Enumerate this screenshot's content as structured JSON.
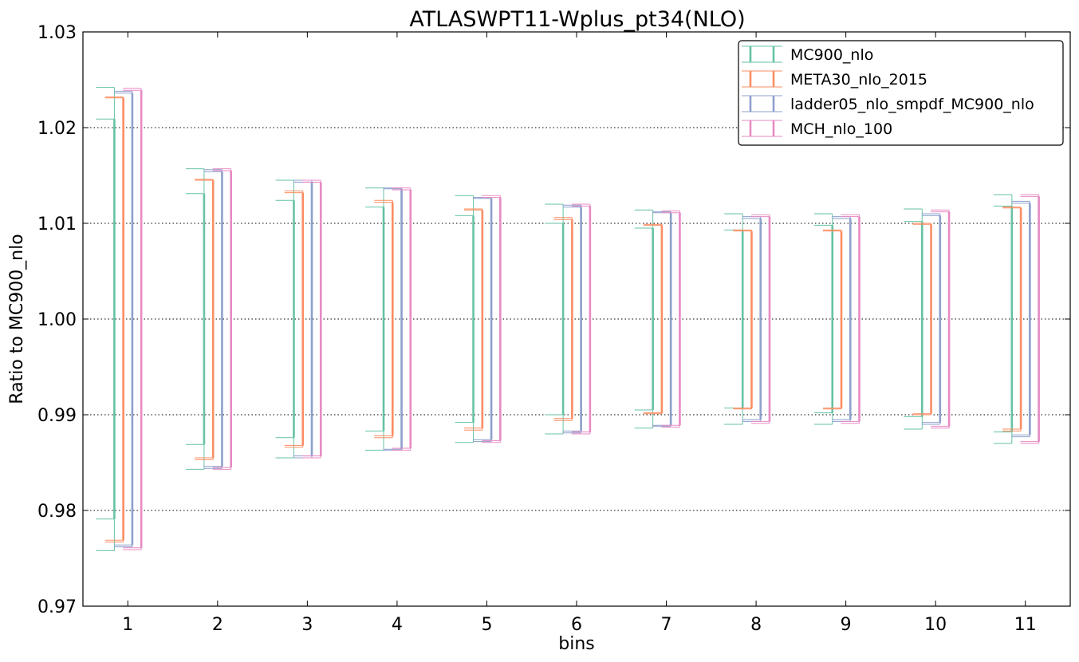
{
  "chart_data": {
    "type": "errorbar",
    "title": "ATLASWPT11-Wplus_pt34(NLO)",
    "xlabel": "bins",
    "ylabel": "Ratio to MC900_nlo",
    "ylim": [
      0.97,
      1.03
    ],
    "xlim": [
      0.5,
      11.5
    ],
    "yticks": [
      "0.97",
      "0.98",
      "0.99",
      "1.00",
      "1.01",
      "1.02",
      "1.03"
    ],
    "categories": [
      "1",
      "2",
      "3",
      "4",
      "5",
      "6",
      "7",
      "8",
      "9",
      "10",
      "11"
    ],
    "grid": "horizontal-dotted",
    "legend_position": "top-right",
    "series": [
      {
        "name": "MC900_nlo",
        "color": "#66c2a5",
        "outer": [
          [
            0.9758,
            1.0242
          ],
          [
            0.9843,
            1.0157
          ],
          [
            0.9855,
            1.0145
          ],
          [
            0.9863,
            1.0137
          ],
          [
            0.9871,
            1.0129
          ],
          [
            0.988,
            1.012
          ],
          [
            0.9886,
            1.0114
          ],
          [
            0.989,
            1.011
          ],
          [
            0.989,
            1.011
          ],
          [
            0.9885,
            1.0115
          ],
          [
            0.987,
            1.013
          ]
        ],
        "inner": [
          [
            0.9791,
            1.0209
          ],
          [
            0.9869,
            1.0131
          ],
          [
            0.9876,
            1.0124
          ],
          [
            0.9883,
            1.0117
          ],
          [
            0.9892,
            1.0108
          ],
          [
            0.99,
            1.01
          ],
          [
            0.9905,
            1.0095
          ],
          [
            0.9907,
            1.0093
          ],
          [
            0.9902,
            1.0098
          ],
          [
            0.9898,
            1.0102
          ],
          [
            0.9882,
            1.0118
          ]
        ]
      },
      {
        "name": "META30_nlo_2015",
        "color": "#fc8d62",
        "outer": [
          [
            0.9767,
            1.0232
          ],
          [
            0.9853,
            1.0146
          ],
          [
            0.9866,
            1.0134
          ],
          [
            0.9876,
            1.0124
          ],
          [
            0.9884,
            1.0115
          ],
          [
            0.9894,
            1.0106
          ],
          [
            0.9901,
            1.0099
          ],
          [
            0.9906,
            1.0093
          ],
          [
            0.9906,
            1.0093
          ],
          [
            0.99,
            1.01
          ],
          [
            0.9883,
            1.0117
          ]
        ],
        "inner": [
          [
            0.9769,
            1.0231
          ],
          [
            0.9855,
            1.0145
          ],
          [
            0.9868,
            1.0132
          ],
          [
            0.9878,
            1.0122
          ],
          [
            0.9886,
            1.0114
          ],
          [
            0.9896,
            1.0104
          ],
          [
            0.9902,
            1.0098
          ],
          [
            0.9907,
            1.0092
          ],
          [
            0.9907,
            1.0092
          ],
          [
            0.9901,
            1.0099
          ],
          [
            0.9885,
            1.0116
          ]
        ]
      },
      {
        "name": "ladder05_nlo_smpdf_MC900_nlo",
        "color": "#8da0cb",
        "outer": [
          [
            0.9762,
            1.0238
          ],
          [
            0.9844,
            1.0156
          ],
          [
            0.9855,
            1.0145
          ],
          [
            0.9863,
            1.0137
          ],
          [
            0.9872,
            1.0127
          ],
          [
            0.9881,
            1.0119
          ],
          [
            0.9888,
            1.0112
          ],
          [
            0.9893,
            1.0107
          ],
          [
            0.9893,
            1.0107
          ],
          [
            0.989,
            1.011
          ],
          [
            0.9877,
            1.0123
          ]
        ],
        "inner": [
          [
            0.9764,
            1.0236
          ],
          [
            0.9846,
            1.0154
          ],
          [
            0.9857,
            1.0143
          ],
          [
            0.9864,
            1.0136
          ],
          [
            0.9874,
            1.0126
          ],
          [
            0.9883,
            1.0117
          ],
          [
            0.9889,
            1.0111
          ],
          [
            0.9895,
            1.0105
          ],
          [
            0.9895,
            1.0105
          ],
          [
            0.9892,
            1.0108
          ],
          [
            0.9879,
            1.0121
          ]
        ]
      },
      {
        "name": "MCH_nlo_100",
        "color": "#e78ac3",
        "outer": [
          [
            0.9759,
            1.0241
          ],
          [
            0.9843,
            1.0157
          ],
          [
            0.9855,
            1.0145
          ],
          [
            0.9863,
            1.0137
          ],
          [
            0.9871,
            1.0129
          ],
          [
            0.988,
            1.012
          ],
          [
            0.9887,
            1.0113
          ],
          [
            0.9891,
            1.0109
          ],
          [
            0.9891,
            1.0109
          ],
          [
            0.9886,
            1.0114
          ],
          [
            0.987,
            1.013
          ]
        ],
        "inner": [
          [
            0.9761,
            1.0239
          ],
          [
            0.9845,
            1.0155
          ],
          [
            0.9857,
            1.0143
          ],
          [
            0.9865,
            1.0135
          ],
          [
            0.9873,
            1.0127
          ],
          [
            0.9882,
            1.0118
          ],
          [
            0.9889,
            1.0111
          ],
          [
            0.9893,
            1.0107
          ],
          [
            0.9893,
            1.0107
          ],
          [
            0.9888,
            1.0112
          ],
          [
            0.9872,
            1.0128
          ]
        ]
      }
    ]
  }
}
